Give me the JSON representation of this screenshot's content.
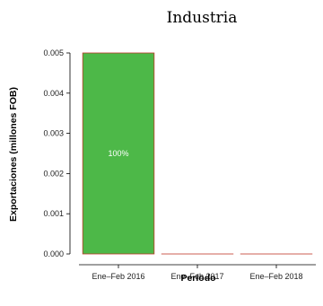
{
  "chart_data": {
    "type": "bar",
    "title": "Industria",
    "xlabel": "Período",
    "ylabel": "Exportaciones (millones FOB)",
    "categories": [
      "Ene–Feb 2016",
      "Ene–Feb 2017",
      "Ene–Feb 2018"
    ],
    "values": [
      0.005,
      0,
      0
    ],
    "data_labels": [
      "100%",
      "",
      ""
    ],
    "ylim": [
      0,
      0.005
    ],
    "yticks": [
      0.0,
      0.001,
      0.002,
      0.003,
      0.004,
      0.005
    ],
    "ytick_labels": [
      "0.000",
      "0.001",
      "0.002",
      "0.003",
      "0.004",
      "0.005"
    ],
    "grid": false,
    "colors": {
      "bar_fill": "#4DB848",
      "bar_outline": "#C0392B"
    }
  }
}
